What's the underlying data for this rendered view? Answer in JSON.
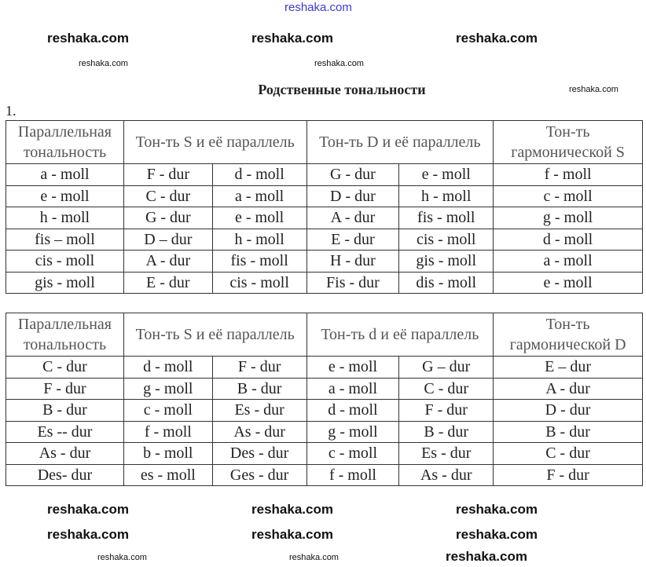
{
  "title": "Родственные тональности",
  "number": "1.",
  "watermarks": [
    "reshaka.com",
    "reshaka.com",
    "reshaka.com",
    "reshaka.com",
    "reshaka.com",
    "reshaka.com",
    "reshaka.com",
    "reshaka.com",
    "reshaka.com",
    "reshaka.com",
    "reshaka.com",
    "reshaka.com",
    "reshaka.com",
    "reshaka.com",
    "reshaka.com",
    "reshaka.com"
  ],
  "table1": {
    "headers": [
      "Параллельная тональность",
      "Тон-ть S и её параллель",
      "Тон-ть D и её параллель",
      "Тон-ть гармонической S"
    ],
    "rows": [
      [
        "a - moll",
        "F - dur",
        "d - moll",
        "G - dur",
        "e - moll",
        "f - moll"
      ],
      [
        "e - moll",
        "C - dur",
        "a - moll",
        "D - dur",
        "h - moll",
        "c - moll"
      ],
      [
        "h - moll",
        "G - dur",
        "e - moll",
        "A - dur",
        "fis - moll",
        "g - moll"
      ],
      [
        "fis – moll",
        "D – dur",
        "h - moll",
        "E - dur",
        "cis - moll",
        "d - moll"
      ],
      [
        "cis - moll",
        "A - dur",
        "fis - moll",
        "H - dur",
        "gis - moll",
        "a - moll"
      ],
      [
        "gis - moll",
        "E - dur",
        "cis - moll",
        "Fis - dur",
        "dis - moll",
        "e - moll"
      ]
    ]
  },
  "table2": {
    "headers": [
      "Параллельная тональность",
      "Тон-ть S и её параллель",
      "Тон-ть d и её параллель",
      "Тон-ть гармонической D"
    ],
    "rows": [
      [
        "C - dur",
        "d - moll",
        "F - dur",
        "e - moll",
        "G – dur",
        "E – dur"
      ],
      [
        "F - dur",
        "g - moll",
        "B - dur",
        "a - moll",
        "C - dur",
        "A - dur"
      ],
      [
        "B - dur",
        "c - moll",
        "Es - dur",
        "d - moll",
        "F - dur",
        "D - dur"
      ],
      [
        "Es -- dur",
        "f - moll",
        "As - dur",
        "g - moll",
        "B - dur",
        "B - dur"
      ],
      [
        "As - dur",
        "b - moll",
        "Des - dur",
        "c - moll",
        "Es - dur",
        "C - dur"
      ],
      [
        "Des- dur",
        "es - moll",
        "Ges - dur",
        "f - moll",
        "As - dur",
        "F - dur"
      ]
    ]
  }
}
